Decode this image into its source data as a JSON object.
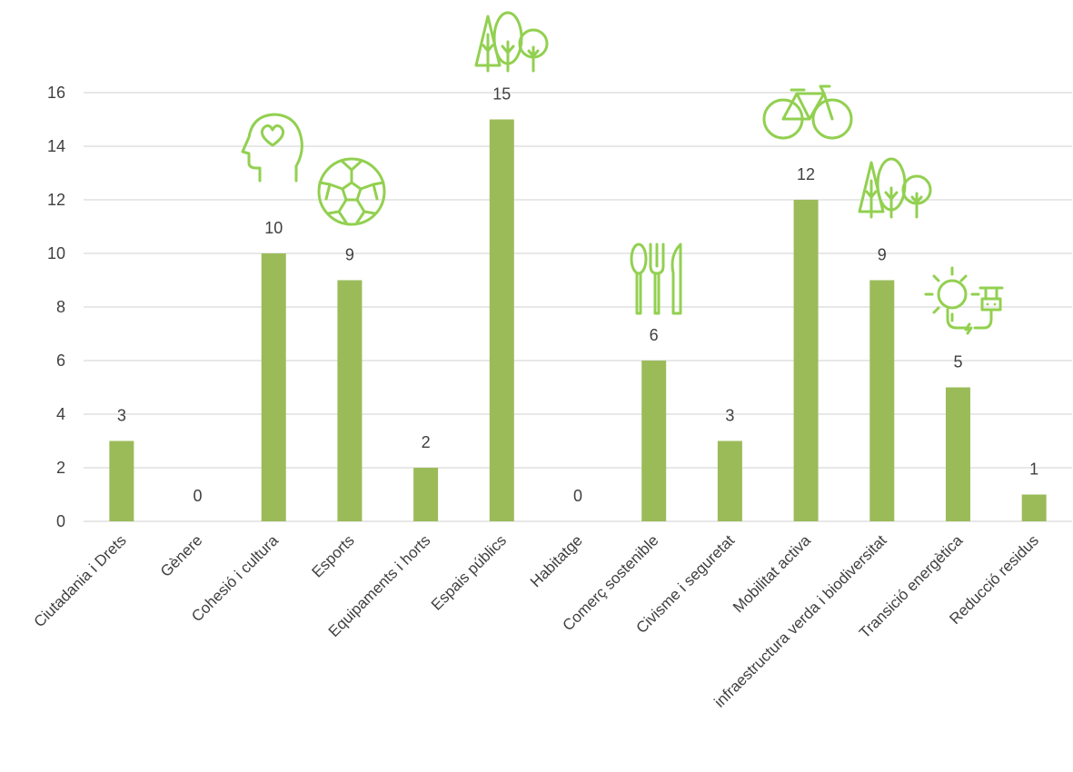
{
  "chart_data": {
    "type": "bar",
    "categories": [
      "Ciutadania i Drets",
      "Gènere",
      "Cohesió i cultura",
      "Esports",
      "Equipaments i horts",
      "Espais públics",
      "Habitatge",
      "Comerç sostenible",
      "Civisme i seguretat",
      "Mobilitat activa",
      "infraestructura verda i biodiversitat",
      "Transició energètica",
      "Reducció residus"
    ],
    "values": [
      3,
      0,
      10,
      9,
      2,
      15,
      0,
      6,
      3,
      12,
      9,
      5,
      1
    ],
    "data_labels": [
      "3",
      "0",
      "10",
      "9",
      "2",
      "15",
      "0",
      "6",
      "3",
      "12",
      "9",
      "5",
      "1"
    ],
    "yticks": [
      "0",
      "2",
      "4",
      "6",
      "8",
      "10",
      "12",
      "14",
      "16"
    ],
    "ylim": [
      0,
      16
    ],
    "grid": true,
    "legend": "none",
    "bar_color": "#9bbb59",
    "icon_color": "#92d050",
    "icons": [
      {
        "name": "heart-head-icon",
        "category": "Cohesió i cultura"
      },
      {
        "name": "soccer-ball-icon",
        "category": "Esports"
      },
      {
        "name": "trees-icon",
        "category": "Espais públics"
      },
      {
        "name": "cutlery-icon",
        "category": "Comerç sostenible"
      },
      {
        "name": "bicycle-icon",
        "category": "Mobilitat activa"
      },
      {
        "name": "trees-icon",
        "category": "infraestructura verda i biodiversitat"
      },
      {
        "name": "sun-plug-icon",
        "category": "Transició energètica"
      }
    ]
  }
}
